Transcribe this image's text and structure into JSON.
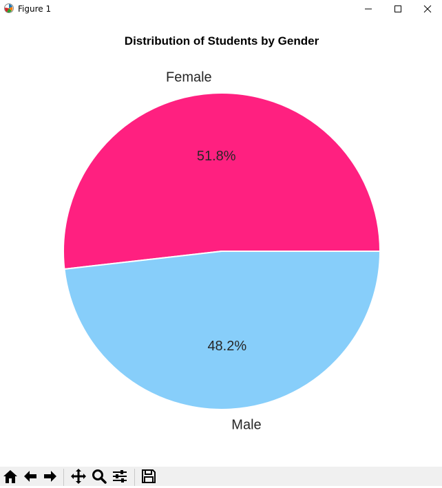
{
  "window": {
    "title": "Figure 1"
  },
  "chart_data": {
    "type": "pie",
    "title": "Distribution of Students by Gender",
    "slices": [
      {
        "label": "Female",
        "value": 51.8,
        "pct_label": "51.8%",
        "color": "#ff2080"
      },
      {
        "label": "Male",
        "value": 48.2,
        "pct_label": "48.2%",
        "color": "#87cefa"
      }
    ],
    "start_angle_deg": 0,
    "direction": "counterclockwise",
    "edge_color": "#ffffff",
    "text_color": "#262626"
  },
  "toolbar": {
    "buttons": [
      {
        "name": "home-button",
        "icon": "home-icon"
      },
      {
        "name": "back-button",
        "icon": "arrow-left-icon"
      },
      {
        "name": "forward-button",
        "icon": "arrow-right-icon"
      },
      {
        "name": "pan-button",
        "icon": "move-icon"
      },
      {
        "name": "zoom-button",
        "icon": "magnifier-icon"
      },
      {
        "name": "subplots-button",
        "icon": "sliders-icon"
      },
      {
        "name": "save-button",
        "icon": "floppy-disk-icon"
      }
    ]
  }
}
